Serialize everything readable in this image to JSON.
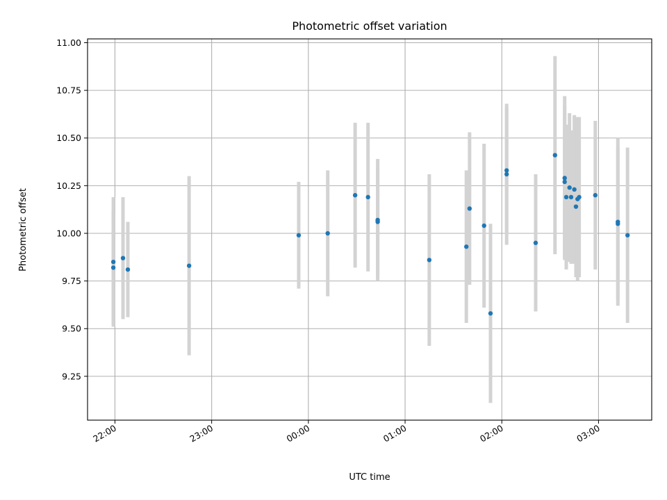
{
  "chart_data": {
    "type": "scatter",
    "title": "Photometric offset variation",
    "xlabel": "UTC time",
    "ylabel": "Photometric offset",
    "x_unit": "UTC time (HH:MM)",
    "xlim": [
      "21:43",
      "03:33"
    ],
    "ylim": [
      9.02,
      11.02
    ],
    "grid": true,
    "legend": "none",
    "x_ticks": [
      "22:00",
      "23:00",
      "00:00",
      "01:00",
      "02:00",
      "03:00"
    ],
    "y_ticks": [
      9.25,
      9.5,
      9.75,
      10.0,
      10.25,
      10.5,
      10.75,
      11.0
    ],
    "y_tick_labels": [
      "9.25",
      "9.50",
      "9.75",
      "10.00",
      "10.25",
      "10.50",
      "10.75",
      "11.00"
    ],
    "marker_color": "#1f77b4",
    "errorbar_color": "#d3d3d3",
    "points": [
      {
        "time": "21:59",
        "y": 9.85,
        "err": 0.34
      },
      {
        "time": "21:59",
        "y": 9.82,
        "err": 0.3
      },
      {
        "time": "22:05",
        "y": 9.87,
        "err": 0.32
      },
      {
        "time": "22:08",
        "y": 9.81,
        "err": 0.25
      },
      {
        "time": "22:46",
        "y": 9.83,
        "err": 0.47
      },
      {
        "time": "23:54",
        "y": 9.99,
        "err": 0.28
      },
      {
        "time": "00:12",
        "y": 10.0,
        "err": 0.33
      },
      {
        "time": "00:29",
        "y": 10.2,
        "err": 0.38
      },
      {
        "time": "00:37",
        "y": 10.19,
        "err": 0.39
      },
      {
        "time": "00:43",
        "y": 10.07,
        "err": 0.32
      },
      {
        "time": "00:43",
        "y": 10.06,
        "err": 0.28
      },
      {
        "time": "01:15",
        "y": 9.86,
        "err": 0.45
      },
      {
        "time": "01:38",
        "y": 9.93,
        "err": 0.4
      },
      {
        "time": "01:40",
        "y": 10.13,
        "err": 0.4
      },
      {
        "time": "01:49",
        "y": 10.04,
        "err": 0.43
      },
      {
        "time": "01:53",
        "y": 9.58,
        "err": 0.47
      },
      {
        "time": "02:03",
        "y": 10.31,
        "err": 0.37
      },
      {
        "time": "02:03",
        "y": 10.33,
        "err": 0.33
      },
      {
        "time": "02:21",
        "y": 9.95,
        "err": 0.36
      },
      {
        "time": "02:33",
        "y": 10.41,
        "err": 0.52
      },
      {
        "time": "02:39",
        "y": 10.29,
        "err": 0.43
      },
      {
        "time": "02:39",
        "y": 10.27,
        "err": 0.4
      },
      {
        "time": "02:40",
        "y": 10.19,
        "err": 0.38
      },
      {
        "time": "02:42",
        "y": 10.24,
        "err": 0.39
      },
      {
        "time": "02:43",
        "y": 10.19,
        "err": 0.35
      },
      {
        "time": "02:45",
        "y": 10.23,
        "err": 0.39
      },
      {
        "time": "02:46",
        "y": 10.14,
        "err": 0.37
      },
      {
        "time": "02:47",
        "y": 10.18,
        "err": 0.43
      },
      {
        "time": "02:48",
        "y": 10.19,
        "err": 0.42
      },
      {
        "time": "02:58",
        "y": 10.2,
        "err": 0.39
      },
      {
        "time": "03:12",
        "y": 10.06,
        "err": 0.44
      },
      {
        "time": "03:12",
        "y": 10.05,
        "err": 0.4
      },
      {
        "time": "03:18",
        "y": 9.99,
        "err": 0.46
      }
    ]
  }
}
